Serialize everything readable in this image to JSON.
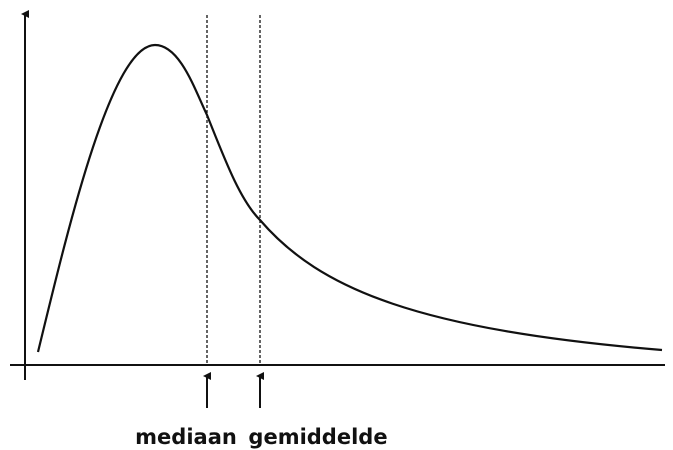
{
  "labels": {
    "median": "mediaan",
    "mean": "gemiddelde"
  }
}
